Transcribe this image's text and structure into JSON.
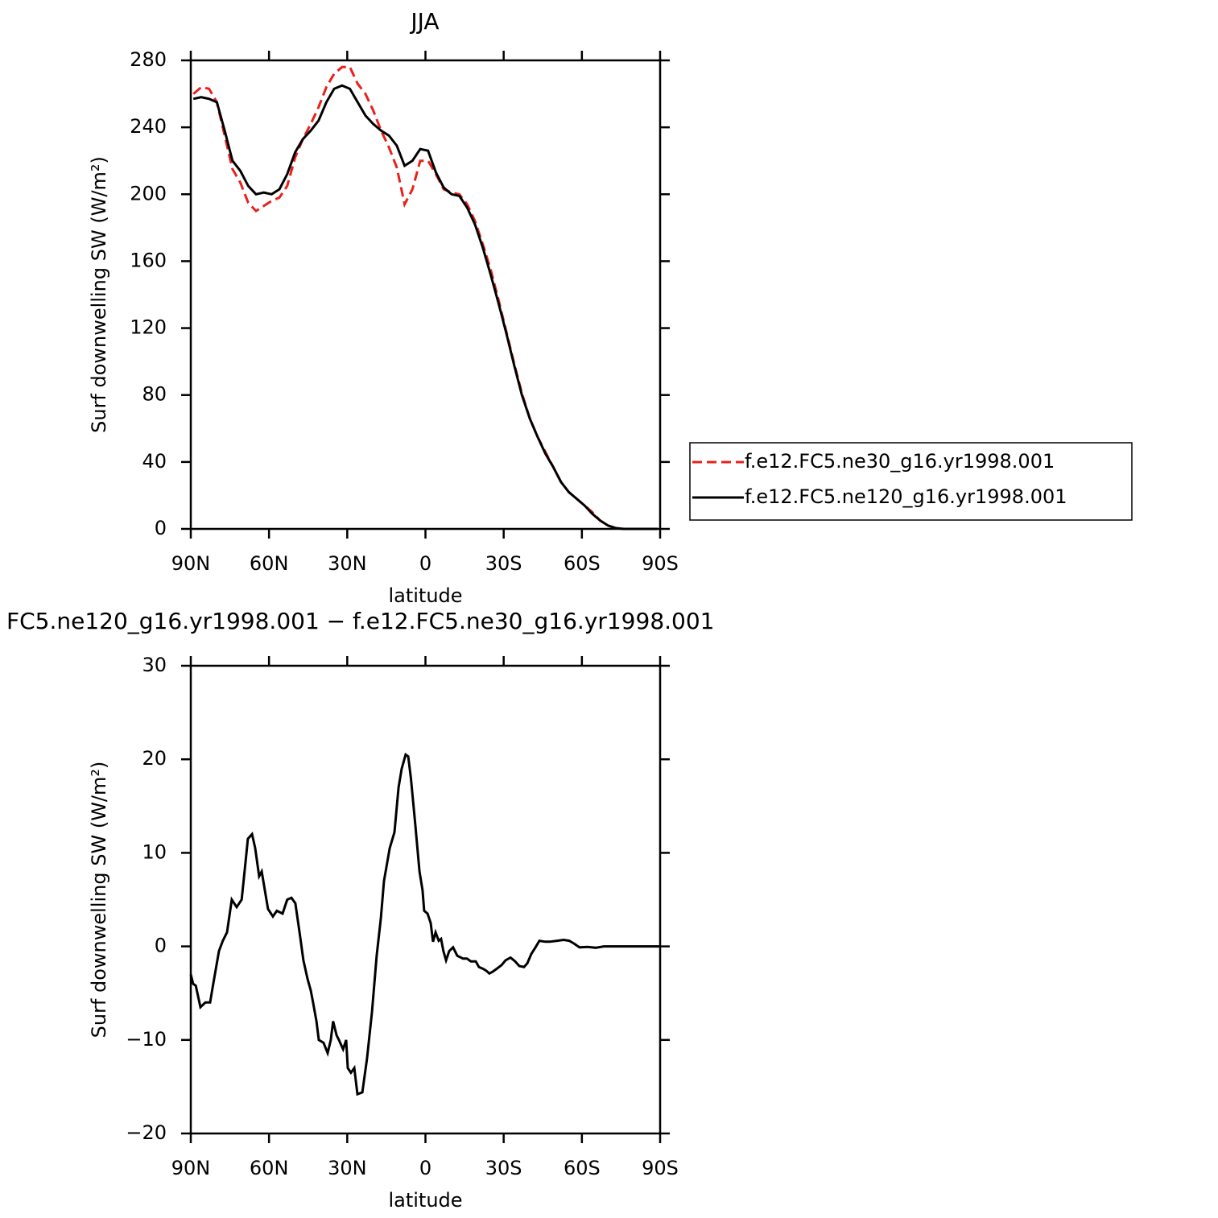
{
  "chart_data": [
    {
      "type": "line",
      "title": "JJA",
      "xlabel": "latitude",
      "ylabel": "Surf downwelling SW (W/m²)",
      "xlim": [
        90,
        -90
      ],
      "xticks": [
        {
          "value": 90,
          "label": "90N"
        },
        {
          "value": 60,
          "label": "60N"
        },
        {
          "value": 30,
          "label": "30N"
        },
        0,
        {
          "value": -30,
          "label": "30S"
        },
        {
          "value": -60,
          "label": "60S"
        },
        {
          "value": -90,
          "label": "90S"
        }
      ],
      "ylim": [
        0,
        280
      ],
      "yticks": [
        0,
        40,
        80,
        120,
        160,
        200,
        240,
        280
      ],
      "legend": "outside-right",
      "x": [
        89,
        86,
        83,
        80,
        77,
        74,
        71,
        68,
        65,
        62,
        59,
        56,
        53,
        50,
        47,
        44,
        41,
        38,
        35,
        32,
        29,
        26,
        23,
        20,
        17,
        14,
        11,
        8,
        5,
        2,
        -1,
        -4,
        -7,
        -10,
        -13,
        -16,
        -19,
        -22,
        -25,
        -28,
        -31,
        -34,
        -37,
        -40,
        -43,
        -46,
        -49,
        -52,
        -55,
        -58,
        -61,
        -64,
        -67,
        -70,
        -73,
        -76,
        -79,
        -82,
        -85,
        -89
      ],
      "series": [
        {
          "name": "f.e12.FC5.ne30_g16.yr1998.001",
          "color": "#e8211c",
          "dash": "dashed",
          "values": [
            260,
            264,
            263,
            255,
            235,
            215,
            207,
            195,
            190,
            193,
            196,
            198,
            205,
            222,
            233,
            242,
            252,
            264,
            272,
            276,
            276,
            266,
            260,
            250,
            238,
            228,
            216,
            194,
            203,
            220,
            220,
            212,
            203,
            201,
            200,
            194,
            184,
            170,
            155,
            137,
            118,
            99,
            81,
            66,
            55,
            46,
            37,
            28,
            22,
            18,
            14,
            10,
            5,
            2,
            0.5,
            0,
            0,
            0,
            0,
            0
          ]
        },
        {
          "name": "f.e12.FC5.ne120_g16.yr1998.001",
          "color": "#000000",
          "dash": "solid",
          "values": [
            257,
            258,
            257,
            255,
            238,
            220,
            214,
            205,
            200,
            201,
            200,
            203,
            212,
            225,
            233,
            238,
            244,
            255,
            263,
            265,
            263,
            255,
            247,
            242,
            238,
            235,
            229,
            217,
            220,
            227,
            226,
            213,
            204,
            200,
            199,
            192,
            182,
            168,
            152,
            135,
            117,
            98,
            80,
            66,
            55,
            45,
            37,
            28,
            22,
            18,
            14,
            9,
            5,
            2,
            0.5,
            0,
            0,
            0,
            0,
            0
          ]
        }
      ]
    },
    {
      "type": "line",
      "title": "FC5.ne120_g16.yr1998.001 − f.e12.FC5.ne30_g16.yr1998.001",
      "xlabel": "latitude",
      "ylabel": "Surf downwelling SW (W/m²)",
      "xlim": [
        90,
        -90
      ],
      "xticks": [
        {
          "value": 90,
          "label": "90N"
        },
        {
          "value": 60,
          "label": "60N"
        },
        {
          "value": 30,
          "label": "30N"
        },
        0,
        {
          "value": -30,
          "label": "30S"
        },
        {
          "value": -60,
          "label": "60S"
        },
        {
          "value": -90,
          "label": "90S"
        }
      ],
      "ylim": [
        -20,
        30
      ],
      "yticks": [
        {
          "value": -20,
          "label": "−20"
        },
        {
          "value": -10,
          "label": "−10"
        },
        0,
        10,
        20,
        30
      ],
      "x": [
        90,
        89.1,
        88.1,
        86.3,
        84.4,
        82.6,
        81.4,
        79.2,
        77.7,
        76.1,
        74.3,
        72.4,
        70.5,
        69.0,
        68.1,
        66.5,
        65.3,
        63.8,
        62.8,
        61.6,
        60.4,
        58.5,
        57.0,
        54.8,
        53.0,
        51.4,
        49.9,
        48.3,
        46.8,
        45.2,
        44.0,
        43.1,
        41.8,
        40.9,
        39.1,
        37.5,
        36.3,
        35.4,
        34.1,
        33.2,
        31.6,
        30.4,
        29.8,
        28.6,
        27.3,
        26.1,
        24.2,
        22.4,
        20.5,
        18.7,
        17.1,
        15.9,
        13.7,
        11.9,
        10.3,
        9.1,
        7.6,
        6.6,
        5.6,
        3.9,
        2.3,
        1.1,
        0.5,
        -0.8,
        -2.0,
        -2.9,
        -3.9,
        -5.1,
        -6.0,
        -6.9,
        -7.9,
        -9.1,
        -10.6,
        -12.2,
        -14.4,
        -15.9,
        -17.4,
        -19.3,
        -20.5,
        -22.1,
        -23.3,
        -24.5,
        -25.8,
        -27.3,
        -29.2,
        -30.7,
        -32.6,
        -34.4,
        -36.0,
        -37.8,
        -39.1,
        -40.6,
        -42.2,
        -43.7,
        -45.9,
        -47.7,
        -50.5,
        -53.0,
        -55.1,
        -57.0,
        -59.1,
        -62.2,
        -65.3,
        -68.4,
        -71.5,
        -77.6,
        -90
      ],
      "series": [
        {
          "color": "#000000",
          "dash": "solid",
          "values": [
            -3,
            -4,
            -4.2,
            -6.5,
            -6,
            -6,
            -4,
            -0.5,
            0.6,
            1.5,
            5,
            4.2,
            5,
            9,
            11.5,
            12,
            10.5,
            7.5,
            8,
            6,
            4,
            3.2,
            3.8,
            3.5,
            5,
            5.2,
            4.6,
            1.5,
            -1.5,
            -3.5,
            -4.7,
            -6,
            -8,
            -10,
            -10.3,
            -11.4,
            -10,
            -8,
            -9.5,
            -10,
            -11,
            -10,
            -13,
            -13.5,
            -13,
            -15.8,
            -15.6,
            -12,
            -7,
            -1,
            3,
            7,
            10.5,
            12.2,
            17,
            19,
            20.5,
            20.3,
            18,
            13,
            8,
            6,
            3.8,
            3.5,
            2.5,
            0.5,
            1.5,
            0.6,
            0.8,
            -0.5,
            -1.5,
            -0.5,
            -0.1,
            -1,
            -1.3,
            -1.3,
            -1.6,
            -1.6,
            -2.2,
            -2.4,
            -2.6,
            -2.9,
            -2.7,
            -2.4,
            -2.0,
            -1.5,
            -1.2,
            -1.6,
            -2.1,
            -2.2,
            -1.8,
            -0.8,
            -0.1,
            0.6,
            0.5,
            0.5,
            0.6,
            0.7,
            0.6,
            0.3,
            -0.1,
            -0.05,
            -0.15,
            0,
            0,
            0,
            0
          ]
        }
      ]
    }
  ]
}
